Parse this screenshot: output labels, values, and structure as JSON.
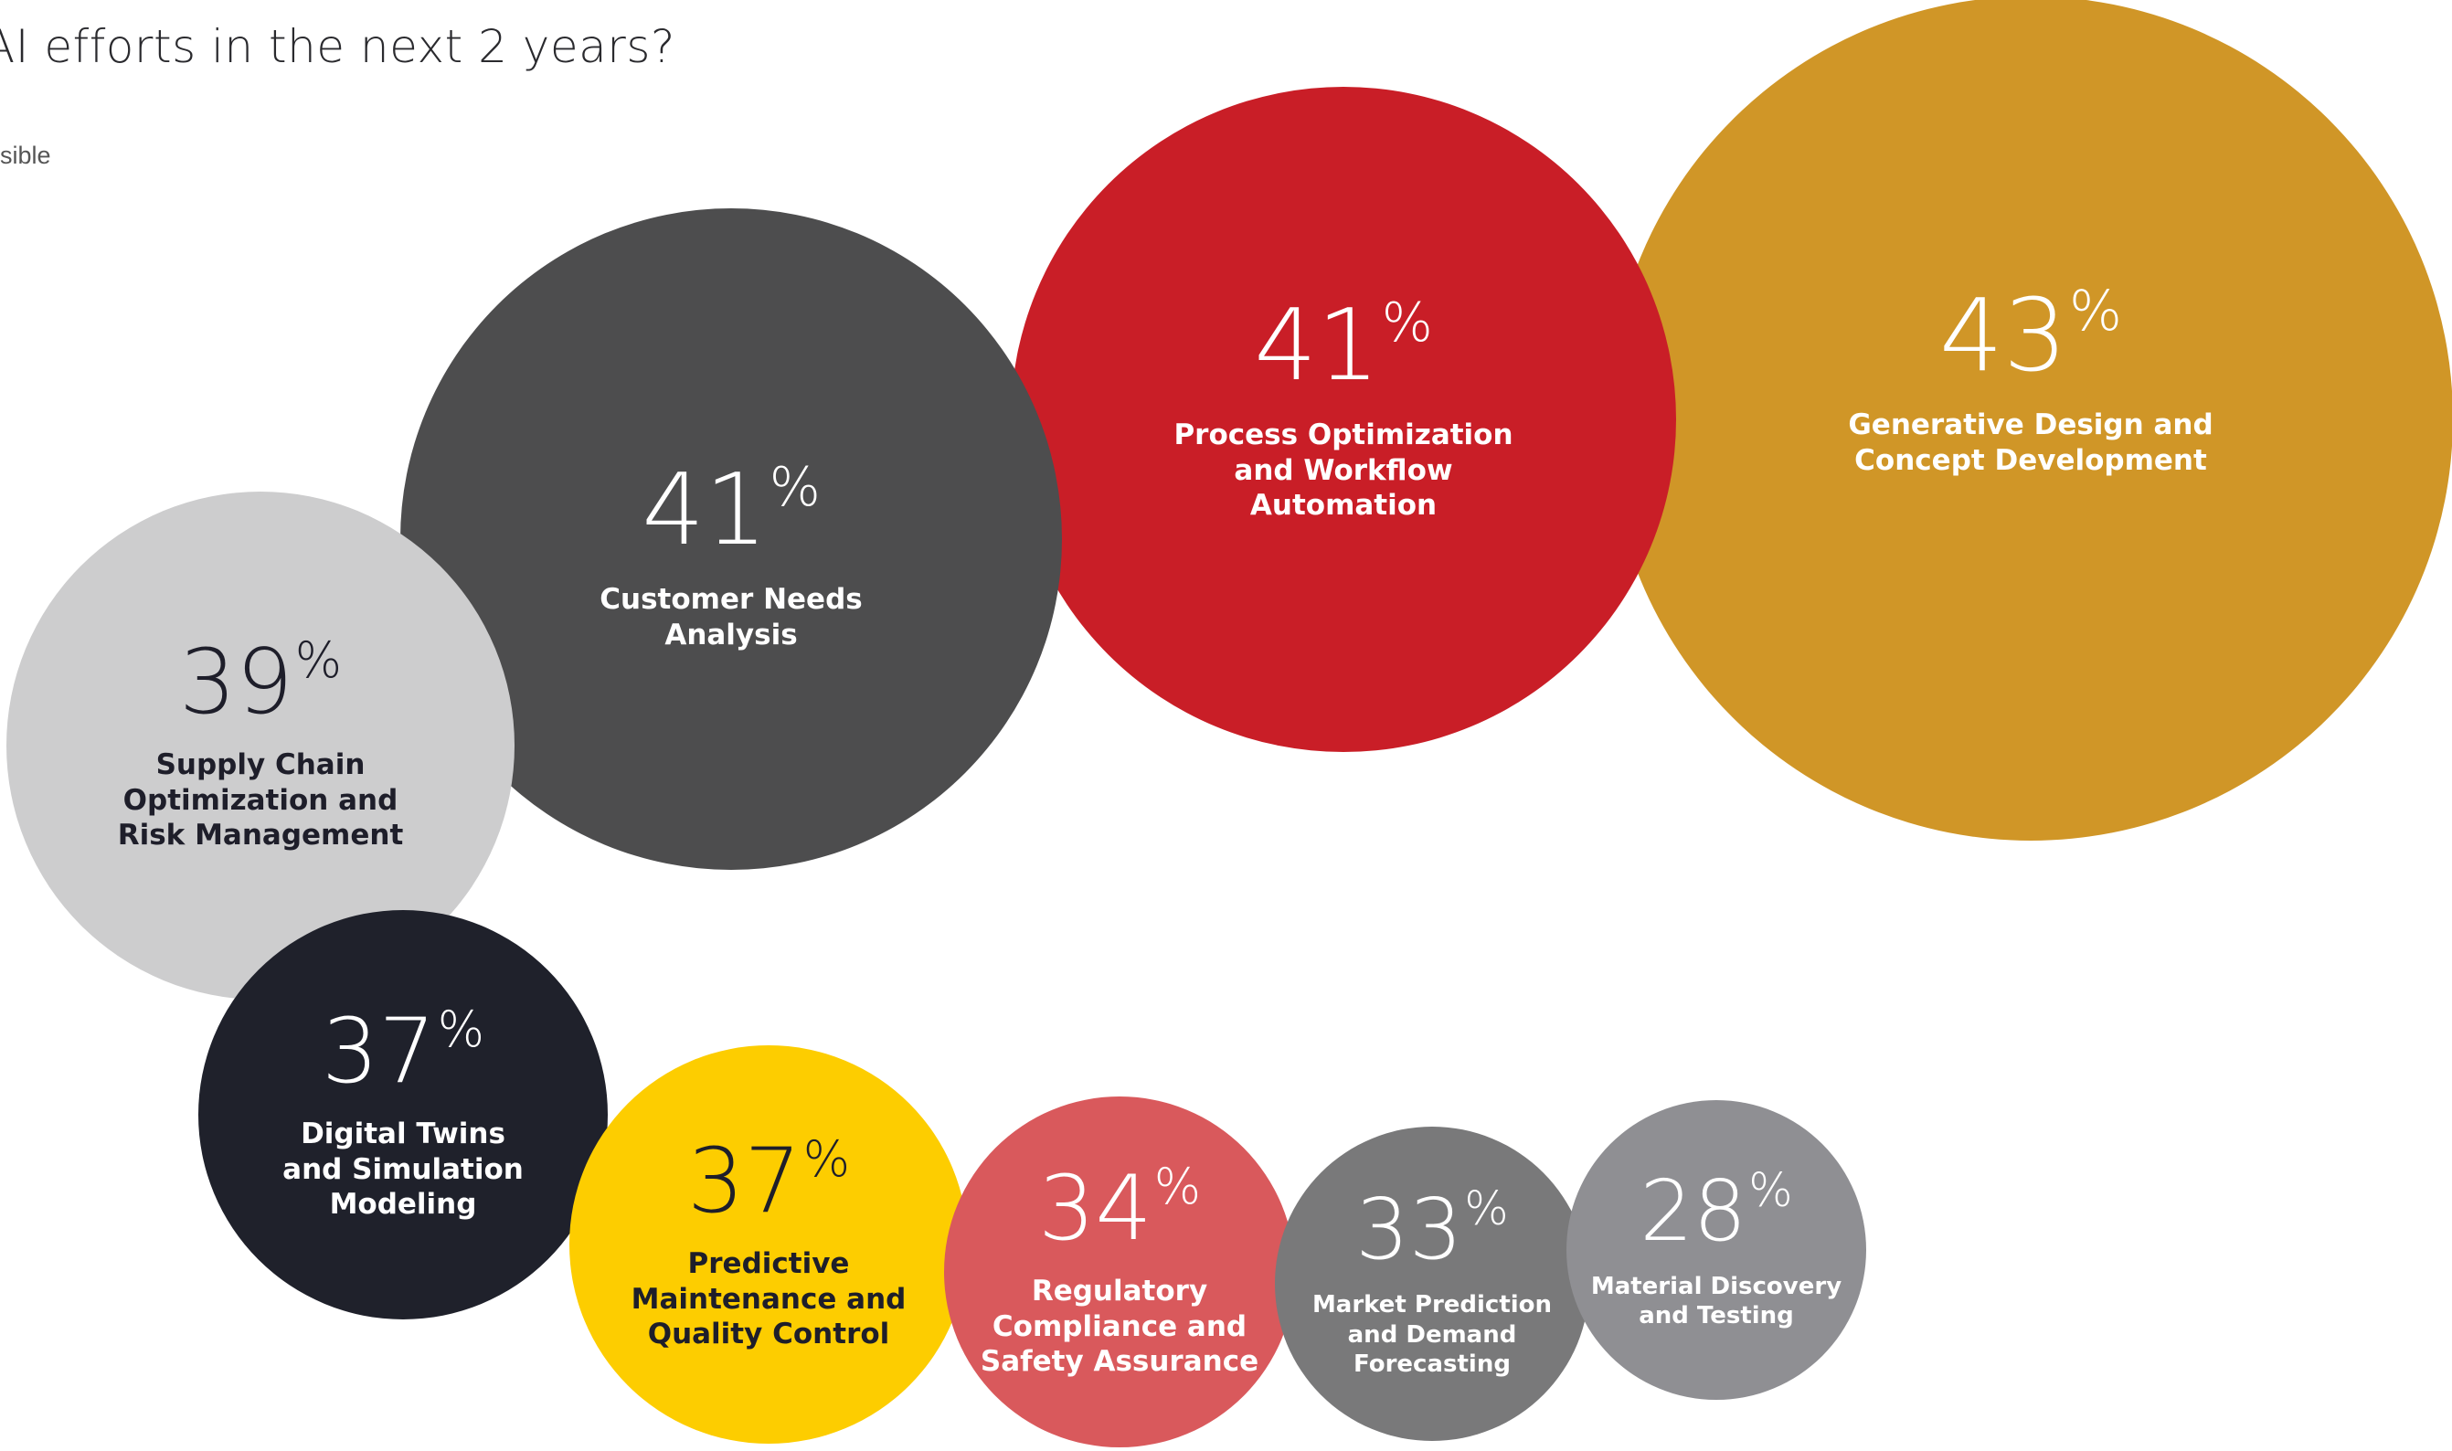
{
  "header": {
    "question_line": "AI efforts in the next 2 years?",
    "note": "sible"
  },
  "chart_data": {
    "type": "bubble",
    "unit": "%",
    "items": [
      {
        "label": "Generative Design and\nConcept Development",
        "value": 43,
        "color": "#d09627",
        "text_color": "#ffffff"
      },
      {
        "label": "Process Optimization\nand Workflow\nAutomation",
        "value": 41,
        "color": "#c91e27",
        "text_color": "#ffffff"
      },
      {
        "label": "Customer Needs\nAnalysis",
        "value": 41,
        "color": "#4d4d4e",
        "text_color": "#ffffff"
      },
      {
        "label": "Supply Chain\nOptimization and\nRisk Management",
        "value": 39,
        "color": "#cdcdce",
        "text_color": "#1e1e2a"
      },
      {
        "label": "Digital Twins\nand Simulation\nModeling",
        "value": 37,
        "color": "#1f212b",
        "text_color": "#ffffff"
      },
      {
        "label": "Predictive\nMaintenance and\nQuality Control",
        "value": 37,
        "color": "#fdcd00",
        "text_color": "#1e1e2a"
      },
      {
        "label": "Regulatory\nCompliance and\nSafety Assurance",
        "value": 34,
        "color": "#d9595c",
        "text_color": "#ffffff"
      },
      {
        "label": "Market Prediction\nand Demand\nForecasting",
        "value": 33,
        "color": "#79797a",
        "text_color": "#ffffff"
      },
      {
        "label": "Material Discovery\nand Testing",
        "value": 28,
        "color": "#8f8f93",
        "text_color": "#ffffff"
      }
    ]
  }
}
